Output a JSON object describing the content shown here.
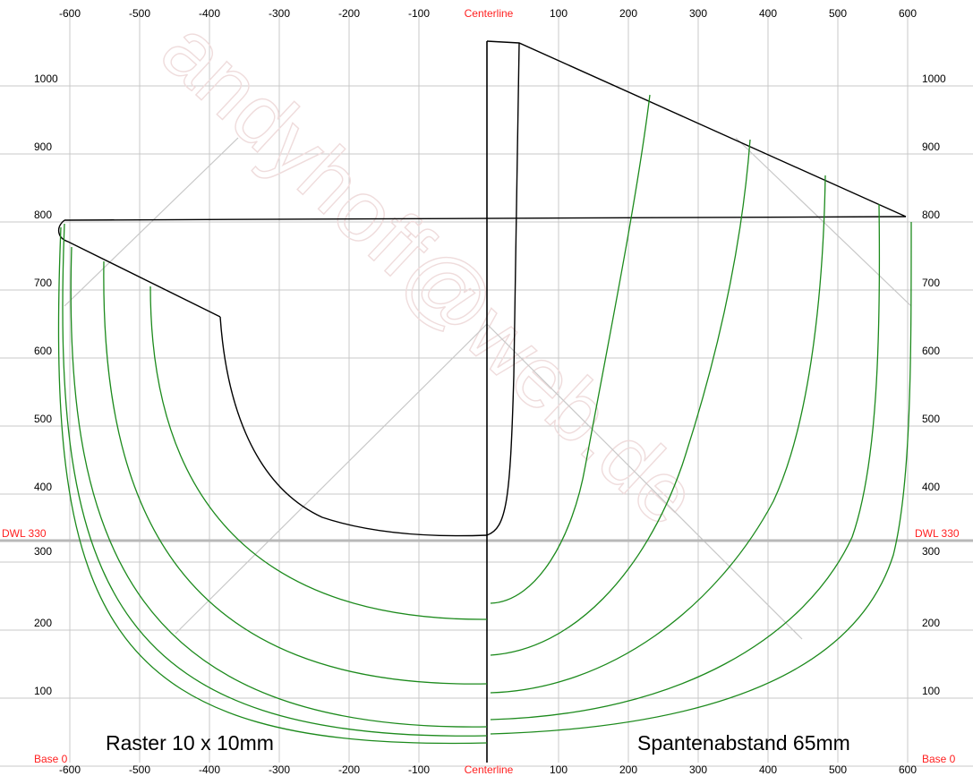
{
  "x_ticks": [
    "-600",
    "-500",
    "-400",
    "-300",
    "-200",
    "-100",
    "Centerline",
    "100",
    "200",
    "300",
    "400",
    "500",
    "600"
  ],
  "y_ticks_left": [
    "1000",
    "900",
    "800",
    "700",
    "600",
    "500",
    "400",
    "DWL 330",
    "300",
    "200",
    "100",
    "Base 0"
  ],
  "y_ticks_right": [
    "1000",
    "900",
    "800",
    "700",
    "600",
    "500",
    "400",
    "DWL 330",
    "300",
    "200",
    "100",
    "Base 0"
  ],
  "notes": {
    "raster": "Raster 10 x 10mm",
    "spacing": "Spantenabstand 65mm"
  },
  "watermark": "andyhoff@web.de",
  "colors": {
    "frame": "#1c8a1c",
    "accent": "#ff2020",
    "grid": "#c8c8c8"
  }
}
